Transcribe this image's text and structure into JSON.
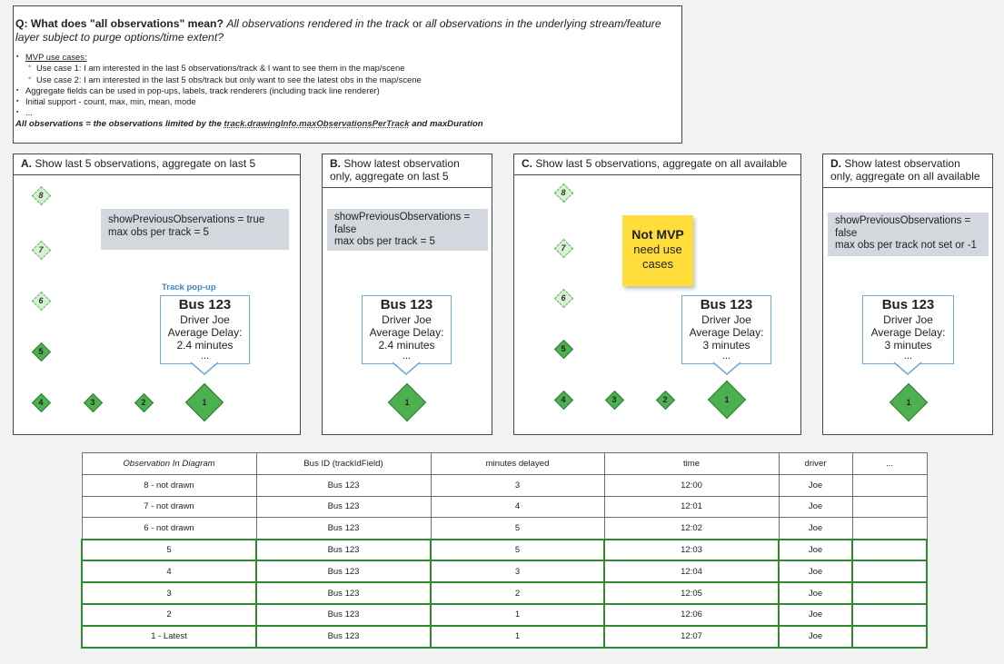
{
  "question": {
    "q_bold": "Q: What does \"all observations\" mean?",
    "q_italic": "All observations rendered in the track",
    "q_or": "or",
    "q_italic2": "all observations in the underlying stream/feature layer subject to purge options/time extent?",
    "bullets": {
      "mvp": "MVP use cases:",
      "uc1": "Use case 1: I am interested in the last 5 observations/track & I want to see them in the map/scene",
      "uc2": "Use case 2: I am interested in the last 5 obs/track but only want to see the latest obs in the map/scene",
      "agg": "Aggregate fields can be used in pop-ups, labels, track renderers (including track line renderer)",
      "init": "Initial support - count, max, min, mean, mode",
      "etc": "..."
    },
    "allobs_prefix": "All observations = the observations limited by the",
    "allobs_link": "track.drawingInfo.maxObservationsPerTrack",
    "allobs_suffix": "and maxDuration"
  },
  "panels": {
    "a": {
      "title_letter": "A.",
      "title": "Show last 5 observations, aggregate on last 5",
      "info_line1": "showPreviousObservations = true",
      "info_line2": "max obs per track  = 5",
      "popup_label": "Track pop-up",
      "popup": {
        "bus": "Bus 123",
        "driver": "Driver Joe",
        "delay_label": "Average Delay:",
        "delay": "2.4 minutes",
        "dots": "..."
      }
    },
    "b": {
      "title_letter": "B.",
      "title": "Show latest observation only, aggregate on last 5",
      "info_line1": "showPreviousObservations =",
      "info_line2": "false",
      "info_line3": "max obs per track = 5",
      "popup": {
        "bus": "Bus 123",
        "driver": "Driver Joe",
        "delay_label": "Average Delay:",
        "delay": "2.4 minutes",
        "dots": "..."
      }
    },
    "c": {
      "title_letter": "C.",
      "title": "Show last 5 observations, aggregate on all available",
      "sticky_bold": "Not MVP",
      "sticky_line2": "need use",
      "sticky_line3": "cases",
      "popup": {
        "bus": "Bus 123",
        "driver": "Driver Joe",
        "delay_label": "Average Delay:",
        "delay": "3 minutes",
        "dots": "..."
      }
    },
    "d": {
      "title_letter": "D.",
      "title": "Show latest observation only, aggregate on all available",
      "info_line1": "showPreviousObservations =",
      "info_line2": "false",
      "info_line3": "max obs per track not set or -1",
      "popup": {
        "bus": "Bus 123",
        "driver": "Driver Joe",
        "delay_label": "Average Delay:",
        "delay": "3 minutes",
        "dots": "..."
      }
    }
  },
  "diamond_labels": [
    "1",
    "2",
    "3",
    "4",
    "5",
    "6",
    "7",
    "8"
  ],
  "colors": {
    "obs_green": "#4caf50",
    "faded_green": "#d9f2d3",
    "popup_border": "#6fa8dc",
    "sticky": "#ffde3b",
    "info_bg": "#d3d7de",
    "highlight_row": "#2e8b2e"
  },
  "table": {
    "headers": [
      "Observation In Diagram",
      "Bus ID (trackIdField)",
      "minutes delayed",
      "time",
      "driver",
      "..."
    ],
    "rows": [
      [
        "8 - not drawn",
        "Bus 123",
        "3",
        "12:00",
        "Joe",
        ""
      ],
      [
        "7 - not drawn",
        "Bus 123",
        "4",
        "12:01",
        "Joe",
        ""
      ],
      [
        "6 - not drawn",
        "Bus 123",
        "5",
        "12:02",
        "Joe",
        ""
      ],
      [
        "5",
        "Bus 123",
        "5",
        "12:03",
        "Joe",
        ""
      ],
      [
        "4",
        "Bus 123",
        "3",
        "12:04",
        "Joe",
        ""
      ],
      [
        "3",
        "Bus 123",
        "2",
        "12:05",
        "Joe",
        ""
      ],
      [
        "2",
        "Bus 123",
        "1",
        "12:06",
        "Joe",
        ""
      ],
      [
        "1 - Latest",
        "Bus 123",
        "1",
        "12:07",
        "Joe",
        ""
      ]
    ]
  }
}
